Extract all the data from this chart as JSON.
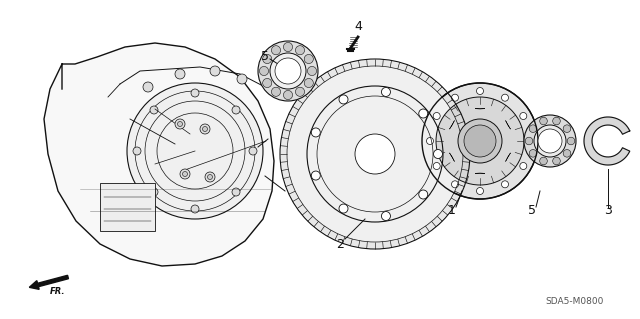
{
  "bg_color": "#ffffff",
  "line_color": "#111111",
  "diagram_code": "SDA5-M0800",
  "fig_width": 6.4,
  "fig_height": 3.19,
  "dpi": 100
}
